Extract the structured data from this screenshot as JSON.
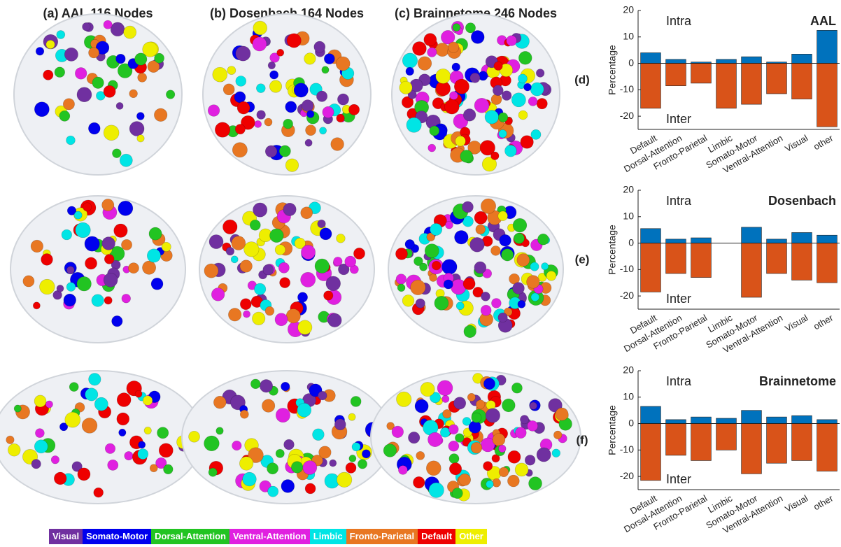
{
  "panels": [
    "(a) AAL 116 Nodes",
    "(b) Dosenbach 164 Nodes",
    "(c) Brainnetome 246 Nodes"
  ],
  "legend": [
    {
      "name": "Visual",
      "color": "#7030a0"
    },
    {
      "name": "Somato-Motor",
      "color": "#0000ee"
    },
    {
      "name": "Dorsal-Attention",
      "color": "#22c422"
    },
    {
      "name": "Ventral-Attention",
      "color": "#e020e0"
    },
    {
      "name": "Limbic",
      "color": "#00e5e5"
    },
    {
      "name": "Fronto-Parietal",
      "color": "#e87722"
    },
    {
      "name": "Default",
      "color": "#ee0000"
    },
    {
      "name": "Other",
      "color": "#eeee00"
    }
  ],
  "chart_data": [
    {
      "type": "bar",
      "label": "(d)",
      "title": "AAL",
      "ylabel": "Percentage",
      "categories": [
        "Default",
        "Dorsal-Attention",
        "Fronto-Parietal",
        "Limbic",
        "Somato-Motor",
        "Ventral-Attention",
        "Visual",
        "other"
      ],
      "series": [
        {
          "name": "Intra",
          "color": "#0072bd",
          "values": [
            4,
            1.5,
            0.5,
            1.5,
            2.5,
            0.5,
            3.5,
            12.5
          ]
        },
        {
          "name": "Inter",
          "color": "#d95319",
          "values": [
            -17,
            -8.5,
            -7.5,
            -17,
            -15.5,
            -11.5,
            -13.5,
            -24
          ]
        }
      ],
      "ylim": [
        -25,
        20
      ],
      "yticks": [
        -20,
        -10,
        0,
        10,
        20
      ]
    },
    {
      "type": "bar",
      "label": "(e)",
      "title": "Dosenbach",
      "ylabel": "Percentage",
      "categories": [
        "Default",
        "Dorsal-Attention",
        "Fronto-Parietal",
        "Limbic",
        "Somato-Motor",
        "Ventral-Attention",
        "Visual",
        "other"
      ],
      "series": [
        {
          "name": "Intra",
          "color": "#0072bd",
          "values": [
            5.5,
            1.5,
            2,
            0,
            6,
            1.5,
            4,
            3
          ]
        },
        {
          "name": "Inter",
          "color": "#d95319",
          "values": [
            -18.5,
            -11.5,
            -13,
            0,
            -20.5,
            -11.5,
            -14,
            -15
          ]
        }
      ],
      "ylim": [
        -25,
        20
      ],
      "yticks": [
        -20,
        -10,
        0,
        10,
        20
      ]
    },
    {
      "type": "bar",
      "label": "(f)",
      "title": "Brainnetome",
      "ylabel": "Percentage",
      "categories": [
        "Default",
        "Dorsal-Attention",
        "Fronto-Parietal",
        "Limbic",
        "Somato-Motor",
        "Ventral-Attention",
        "Visual",
        "other"
      ],
      "series": [
        {
          "name": "Intra",
          "color": "#0072bd",
          "values": [
            6.5,
            1.5,
            2.5,
            2,
            5,
            2.5,
            3,
            1.5
          ]
        },
        {
          "name": "Inter",
          "color": "#d95319",
          "values": [
            -21.5,
            -12,
            -14,
            -10,
            -19,
            -15,
            -14,
            -18
          ]
        }
      ],
      "ylim": [
        -25,
        20
      ],
      "yticks": [
        -20,
        -10,
        0,
        10,
        20
      ]
    }
  ]
}
